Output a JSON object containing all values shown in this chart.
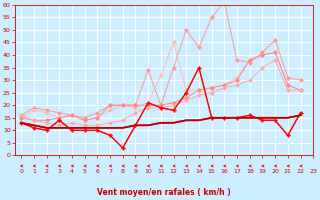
{
  "xlabel": "Vent moyen/en rafales ( km/h )",
  "background_color": "#cceeff",
  "grid_color": "#ffffff",
  "xlim": [
    -0.5,
    23
  ],
  "ylim": [
    0,
    60
  ],
  "yticks": [
    0,
    5,
    10,
    15,
    20,
    25,
    30,
    35,
    40,
    45,
    50,
    55,
    60
  ],
  "xticks": [
    0,
    1,
    2,
    3,
    4,
    5,
    6,
    7,
    8,
    9,
    10,
    11,
    12,
    13,
    14,
    15,
    16,
    17,
    18,
    19,
    20,
    21,
    22,
    23
  ],
  "lines": [
    {
      "color": "#ff9999",
      "linewidth": 0.7,
      "marker": "D",
      "markersize": 2.0,
      "values": [
        16,
        19,
        18,
        17,
        16,
        15,
        17,
        20,
        20,
        20,
        34,
        20,
        35,
        50,
        43,
        55,
        61,
        38,
        37,
        41,
        46,
        31,
        30
      ]
    },
    {
      "color": "#ffbbbb",
      "linewidth": 0.7,
      "marker": "D",
      "markersize": 2.0,
      "values": [
        15,
        18,
        17,
        15,
        16,
        14,
        15,
        18,
        20,
        19,
        21,
        32,
        45,
        26,
        26,
        27,
        28,
        31,
        38,
        40,
        41,
        28,
        26
      ]
    },
    {
      "color": "#ff8888",
      "linewidth": 0.7,
      "marker": "D",
      "markersize": 2.0,
      "values": [
        15,
        14,
        14,
        15,
        16,
        14,
        15,
        20,
        20,
        20,
        20,
        20,
        21,
        23,
        26,
        27,
        28,
        30,
        38,
        40,
        41,
        28,
        26
      ]
    },
    {
      "color": "#ffaaaa",
      "linewidth": 0.7,
      "marker": "D",
      "markersize": 2.0,
      "values": [
        16,
        14,
        13,
        12,
        13,
        12,
        12,
        13,
        14,
        17,
        19,
        19,
        20,
        22,
        24,
        25,
        27,
        28,
        30,
        35,
        38,
        26,
        26
      ]
    },
    {
      "color": "#ff4444",
      "linewidth": 0.9,
      "marker": "D",
      "markersize": 2.0,
      "values": [
        13,
        11,
        10,
        14,
        10,
        10,
        10,
        8,
        3,
        12,
        21,
        19,
        18,
        25,
        35,
        15,
        15,
        15,
        16,
        14,
        14,
        8,
        17
      ]
    },
    {
      "color": "#ff0000",
      "linewidth": 0.9,
      "marker": "+",
      "markersize": 3,
      "values": [
        13,
        11,
        10,
        14,
        10,
        10,
        10,
        8,
        3,
        12,
        21,
        19,
        18,
        25,
        35,
        15,
        15,
        15,
        16,
        14,
        14,
        8,
        17
      ]
    },
    {
      "color": "#dd0000",
      "linewidth": 1.2,
      "marker": null,
      "markersize": 0,
      "values": [
        13,
        12,
        11,
        11,
        11,
        11,
        11,
        11,
        11,
        12,
        12,
        13,
        13,
        14,
        14,
        15,
        15,
        15,
        15,
        15,
        15,
        15,
        16
      ]
    },
    {
      "color": "#bb0000",
      "linewidth": 1.2,
      "marker": null,
      "markersize": 0,
      "values": [
        13,
        12,
        11,
        11,
        11,
        11,
        11,
        11,
        11,
        12,
        12,
        13,
        13,
        14,
        14,
        15,
        15,
        15,
        15,
        15,
        15,
        15,
        16
      ]
    }
  ],
  "arrow_angles": [
    180,
    170,
    175,
    185,
    180,
    180,
    180,
    180,
    180,
    175,
    165,
    175,
    155,
    165,
    175,
    165,
    175,
    185,
    180,
    180,
    180,
    180,
    175
  ]
}
